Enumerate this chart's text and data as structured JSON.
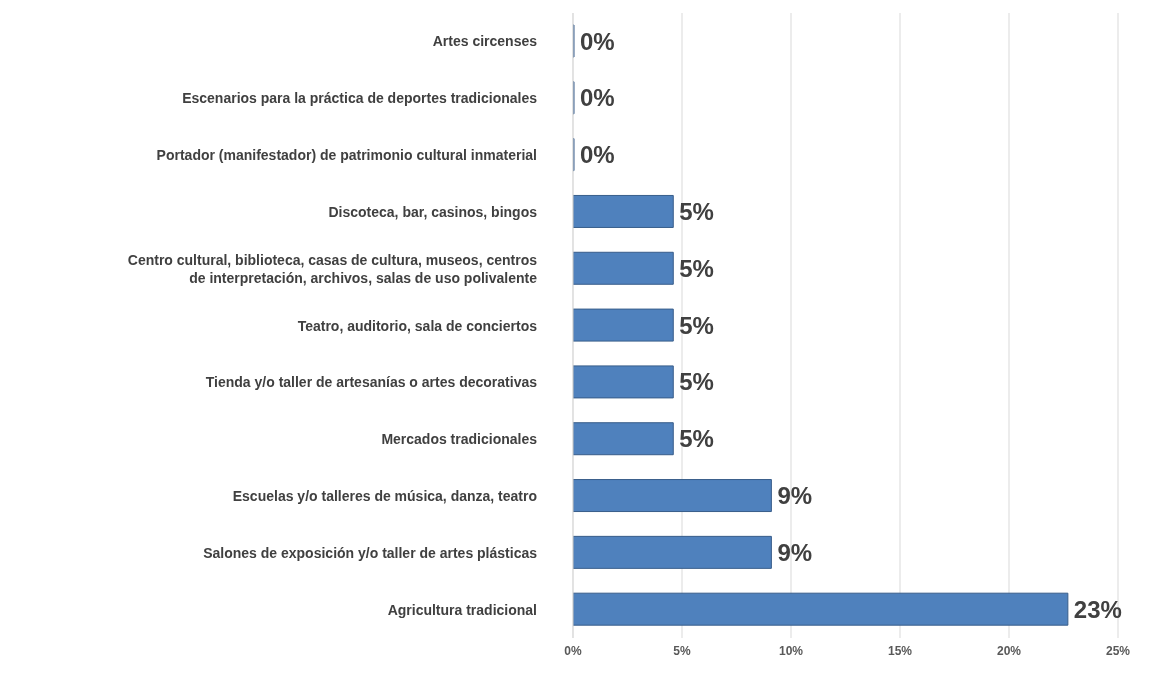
{
  "chart_data": {
    "type": "bar",
    "orientation": "horizontal",
    "categories": [
      "Artes circenses",
      "Escenarios para la práctica de deportes tradicionales",
      "Portador (manifestador) de patrimonio cultural inmaterial",
      "Discoteca, bar, casinos, bingos",
      "Centro cultural, biblioteca, casas de cultura, museos, centros de interpretación, archivos, salas de uso polivalente",
      "Teatro, auditorio, sala de conciertos",
      "Tienda y/o taller de artesanías o artes decorativas",
      "Mercados tradicionales",
      "Escuelas y/o talleres de música, danza, teatro",
      "Salones de exposición y/o taller de artes plásticas",
      "Agricultura tradicional"
    ],
    "values": [
      0,
      0,
      0,
      4.6,
      4.6,
      4.6,
      4.6,
      4.6,
      9.1,
      9.1,
      22.7
    ],
    "value_labels": [
      "0%",
      "0%",
      "0%",
      "5%",
      "5%",
      "5%",
      "5%",
      "5%",
      "9%",
      "9%",
      "23%"
    ],
    "color": "#4f81bd",
    "xlim": [
      0,
      25
    ],
    "xticks": [
      {
        "value": 0,
        "label": "0%"
      },
      {
        "value": 5,
        "label": "5%"
      },
      {
        "value": 10,
        "label": "10%"
      },
      {
        "value": 15,
        "label": "15%"
      },
      {
        "value": 20,
        "label": "20%"
      },
      {
        "value": 25,
        "label": "25%"
      }
    ],
    "grid": "x",
    "legend": false
  }
}
